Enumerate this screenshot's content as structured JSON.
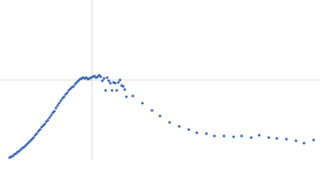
{
  "chart_data": {
    "type": "scatter",
    "color": "#3a67b5",
    "xlim": [
      0,
      400
    ],
    "ylim": [
      0,
      200
    ],
    "xlines": [
      115
    ],
    "ylines": [
      100
    ],
    "line_color": "#d8d8d8",
    "x": [
      12,
      14,
      16,
      18,
      20,
      22,
      24,
      26,
      28,
      30,
      32,
      34,
      36,
      38,
      40,
      42,
      44,
      46,
      48,
      50,
      52,
      54,
      56,
      58,
      60,
      62,
      64,
      66,
      68,
      70,
      72,
      74,
      76,
      78,
      80,
      82,
      84,
      86,
      88,
      90,
      92,
      94,
      96,
      98,
      100,
      102,
      104,
      106,
      108,
      110,
      112,
      114,
      116,
      118,
      120,
      122,
      124,
      126,
      128,
      130,
      132,
      134,
      136,
      138,
      140,
      142,
      144,
      146,
      148,
      150,
      152,
      154,
      156,
      158,
      166,
      178,
      190,
      200,
      212,
      224,
      236,
      246,
      258,
      268,
      280,
      292,
      302,
      314,
      324,
      336,
      346,
      358,
      370,
      380,
      392
    ],
    "values": [
      3,
      4,
      5,
      7,
      8,
      10,
      11,
      13,
      15,
      16,
      18,
      20,
      22,
      24,
      26,
      28,
      31,
      33,
      36,
      38,
      41,
      43,
      45,
      48,
      50,
      53,
      56,
      59,
      61,
      65,
      68,
      71,
      74,
      77,
      79,
      82,
      84,
      87,
      89,
      91,
      92,
      95,
      97,
      99,
      101,
      102,
      103,
      102,
      103,
      101,
      102,
      103,
      104,
      105,
      103,
      104,
      106,
      104,
      99,
      102,
      87,
      103,
      99,
      96,
      87,
      97,
      96,
      87,
      97,
      100,
      93,
      92,
      88,
      79,
      80,
      71,
      62,
      55,
      47,
      42,
      38,
      34,
      33,
      30,
      30,
      29,
      30,
      28,
      31,
      28,
      27,
      26,
      24,
      21,
      25
    ]
  }
}
